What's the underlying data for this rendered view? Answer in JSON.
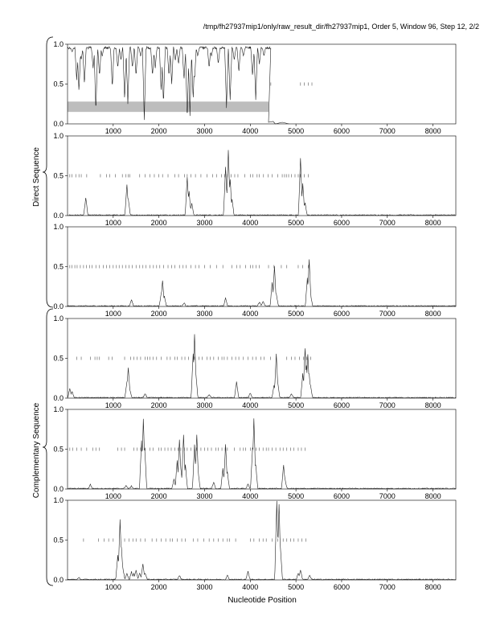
{
  "header": "/tmp/fh27937mip1/only/raw_result_dir/fh27937mip1, Order 5, Window 96, Step 12, 2/2",
  "xlabel": "Nucleotide Position",
  "groups": [
    "Direct Sequence",
    "Complementary Sequence"
  ],
  "chart_data": {
    "type": "line",
    "title": "",
    "xlabel": "Nucleotide Position",
    "xlim": [
      0,
      8500
    ],
    "ylim": [
      0,
      1
    ],
    "x_ticks": [
      1000,
      2000,
      3000,
      4000,
      5000,
      6000,
      7000,
      8000
    ],
    "y_ticks": [
      "0.0",
      "0.5",
      "1.0"
    ],
    "panels": [
      {
        "panel": 1,
        "group": "Direct Sequence",
        "data_end": 4450,
        "shaded_band": {
          "x": [
            0,
            4400
          ],
          "y": [
            0.15,
            0.28
          ]
        },
        "baseline": 0.97,
        "dips": [
          [
            100,
            0.9
          ],
          [
            200,
            0.55
          ],
          [
            250,
            0.4
          ],
          [
            300,
            0.8
          ],
          [
            370,
            0.5
          ],
          [
            560,
            0.7
          ],
          [
            620,
            0.15
          ],
          [
            700,
            0.6
          ],
          [
            760,
            0.85
          ],
          [
            980,
            0.45
          ],
          [
            1100,
            0.7
          ],
          [
            1170,
            0.8
          ],
          [
            1250,
            0.3
          ],
          [
            1320,
            0.25
          ],
          [
            1420,
            0.7
          ],
          [
            1500,
            0.6
          ],
          [
            1600,
            0.85
          ],
          [
            1680,
            0.05
          ],
          [
            1860,
            0.6
          ],
          [
            1920,
            0.7
          ],
          [
            2050,
            0.4
          ],
          [
            2100,
            0.25
          ],
          [
            2220,
            0.6
          ],
          [
            2280,
            0.5
          ],
          [
            2360,
            0.8
          ],
          [
            2430,
            0.75
          ],
          [
            2550,
            0.55
          ],
          [
            2620,
            0.05
          ],
          [
            2680,
            0.1
          ],
          [
            2750,
            0.3
          ],
          [
            2780,
            0.55
          ],
          [
            2850,
            0.85
          ],
          [
            3100,
            0.7
          ],
          [
            3150,
            0.85
          ],
          [
            3300,
            0.75
          ],
          [
            3480,
            0.2
          ],
          [
            3560,
            0.3
          ],
          [
            3650,
            0.8
          ],
          [
            3750,
            0.65
          ],
          [
            3850,
            0.85
          ],
          [
            4050,
            0.6
          ],
          [
            4120,
            0.3
          ],
          [
            4200,
            0.75
          ],
          [
            4300,
            0.85
          ]
        ],
        "tail": [
          [
            4400,
            0.02
          ],
          [
            4500,
            0.03
          ],
          [
            4550,
            0.0
          ],
          [
            4700,
            0.02
          ],
          [
            4850,
            0.0
          ]
        ],
        "ticks_half": [
          4450,
          5100,
          5180,
          5270,
          5350
        ]
      },
      {
        "panel": 2,
        "group": "Direct Sequence",
        "peaks": [
          [
            400,
            0.22
          ],
          [
            1300,
            0.38
          ],
          [
            1330,
            0.2
          ],
          [
            2620,
            0.48
          ],
          [
            2660,
            0.3
          ],
          [
            2720,
            0.15
          ],
          [
            3460,
            0.6
          ],
          [
            3520,
            0.82
          ],
          [
            3560,
            0.45
          ],
          [
            3600,
            0.2
          ],
          [
            5100,
            0.72
          ],
          [
            5150,
            0.4
          ],
          [
            5200,
            0.15
          ]
        ],
        "ticks_half": [
          50,
          100,
          180,
          250,
          300,
          420,
          720,
          850,
          920,
          1050,
          1200,
          1280,
          1330,
          1360,
          1580,
          1700,
          1800,
          1900,
          2000,
          2080,
          2200,
          2350,
          2430,
          2560,
          2620,
          2700,
          2800,
          2920,
          3050,
          3180,
          3260,
          3370,
          3440,
          3500,
          3580,
          3660,
          3730,
          3880,
          4000,
          4060,
          4150,
          4200,
          4290,
          4390,
          4480,
          4600,
          4700,
          4750,
          4790,
          4840,
          4900,
          4980,
          5050,
          5100,
          5180,
          5270
        ]
      },
      {
        "panel": 3,
        "group": "Direct Sequence",
        "peaks": [
          [
            1400,
            0.08
          ],
          [
            2050,
            0.15
          ],
          [
            2080,
            0.32
          ],
          [
            2120,
            0.12
          ],
          [
            2550,
            0.04
          ],
          [
            3460,
            0.1
          ],
          [
            4200,
            0.05
          ],
          [
            4280,
            0.06
          ],
          [
            4480,
            0.3
          ],
          [
            4530,
            0.5
          ],
          [
            4570,
            0.15
          ],
          [
            5250,
            0.35
          ],
          [
            5290,
            0.58
          ],
          [
            5320,
            0.15
          ]
        ],
        "ticks_half": [
          50,
          100,
          160,
          210,
          280,
          350,
          410,
          480,
          540,
          620,
          700,
          780,
          850,
          920,
          1000,
          1070,
          1130,
          1200,
          1280,
          1350,
          1420,
          1500,
          1580,
          1650,
          1720,
          1800,
          1880,
          1950,
          2020,
          2100,
          2200,
          2280,
          2350,
          2450,
          2530,
          2600,
          2700,
          2800,
          2880,
          3000,
          3120,
          3260,
          3400,
          3600,
          3700,
          3780,
          3900,
          4000,
          4060,
          4130,
          4200,
          4400,
          4520,
          4680,
          4800,
          5050,
          5150,
          5270
        ]
      },
      {
        "panel": 4,
        "group": "Complementary Sequence",
        "peaks": [
          [
            50,
            0.12
          ],
          [
            100,
            0.08
          ],
          [
            1300,
            0.2
          ],
          [
            1330,
            0.38
          ],
          [
            1360,
            0.12
          ],
          [
            1700,
            0.05
          ],
          [
            2750,
            0.55
          ],
          [
            2780,
            0.8
          ],
          [
            2810,
            0.3
          ],
          [
            3100,
            0.04
          ],
          [
            3700,
            0.2
          ],
          [
            4000,
            0.06
          ],
          [
            4520,
            0.15
          ],
          [
            4570,
            0.55
          ],
          [
            4600,
            0.2
          ],
          [
            4900,
            0.05
          ],
          [
            5150,
            0.3
          ],
          [
            5200,
            0.62
          ],
          [
            5230,
            0.4
          ],
          [
            5260,
            0.55
          ],
          [
            5290,
            0.3
          ],
          [
            5320,
            0.15
          ]
        ],
        "ticks_half": [
          200,
          300,
          500,
          600,
          650,
          700,
          900,
          980,
          1250,
          1380,
          1450,
          1520,
          1600,
          1700,
          1750,
          1800,
          1870,
          1950,
          2050,
          2180,
          2250,
          2350,
          2400,
          2500,
          2570,
          2650,
          2780,
          2880,
          2950,
          3050,
          3120,
          3200,
          3300,
          3380,
          3430,
          3500,
          3600,
          3680,
          3750,
          3850,
          3950,
          4050,
          4130,
          4230,
          4300,
          4440,
          4800,
          4900,
          4980,
          5080,
          5170,
          5240,
          5320
        ]
      },
      {
        "panel": 5,
        "group": "Complementary Sequence",
        "peaks": [
          [
            500,
            0.05
          ],
          [
            1280,
            0.04
          ],
          [
            1400,
            0.03
          ],
          [
            1620,
            0.6
          ],
          [
            1660,
            0.88
          ],
          [
            1690,
            0.5
          ],
          [
            2330,
            0.12
          ],
          [
            2400,
            0.35
          ],
          [
            2450,
            0.62
          ],
          [
            2480,
            0.25
          ],
          [
            2540,
            0.68
          ],
          [
            2580,
            0.3
          ],
          [
            2780,
            0.55
          ],
          [
            2830,
            0.68
          ],
          [
            2860,
            0.2
          ],
          [
            3200,
            0.08
          ],
          [
            3400,
            0.25
          ],
          [
            3460,
            0.55
          ],
          [
            3500,
            0.2
          ],
          [
            3950,
            0.06
          ],
          [
            4050,
            0.5
          ],
          [
            4080,
            0.88
          ],
          [
            4120,
            0.3
          ],
          [
            4730,
            0.3
          ],
          [
            4760,
            0.12
          ]
        ],
        "ticks_half": [
          50,
          110,
          200,
          300,
          420,
          550,
          620,
          700,
          1100,
          1180,
          1250,
          1450,
          1520,
          1600,
          1700,
          1800,
          1870,
          2000,
          2050,
          2130,
          2200,
          2270,
          2350,
          2420,
          2480,
          2560,
          2620,
          2700,
          2780,
          2830,
          2920,
          3000,
          3070,
          3150,
          3250,
          3300,
          3380,
          3450,
          3500,
          3650,
          3780,
          3850,
          3900,
          4000,
          4050,
          4130,
          4200,
          4280,
          4350,
          4400,
          4480,
          4560,
          4650,
          4720,
          4800,
          4880,
          4950,
          5050,
          5120,
          5200
        ]
      },
      {
        "panel": 6,
        "group": "Complementary Sequence",
        "peaks": [
          [
            250,
            0.02
          ],
          [
            1100,
            0.3
          ],
          [
            1150,
            0.75
          ],
          [
            1180,
            0.4
          ],
          [
            1210,
            0.15
          ],
          [
            1300,
            0.08
          ],
          [
            1400,
            0.1
          ],
          [
            1450,
            0.07
          ],
          [
            1500,
            0.12
          ],
          [
            1580,
            0.08
          ],
          [
            1650,
            0.2
          ],
          [
            1700,
            0.08
          ],
          [
            2450,
            0.05
          ],
          [
            3500,
            0.05
          ],
          [
            3950,
            0.1
          ],
          [
            4580,
            0.98
          ],
          [
            4630,
            0.95
          ],
          [
            4660,
            0.4
          ],
          [
            5050,
            0.08
          ],
          [
            5100,
            0.12
          ],
          [
            5300,
            0.05
          ]
        ],
        "ticks_half": [
          350,
          680,
          800,
          900,
          1000,
          1250,
          1350,
          1430,
          1500,
          1600,
          1700,
          1850,
          1950,
          2050,
          2150,
          2250,
          2300,
          2400,
          2500,
          2580,
          2750,
          2850,
          2980,
          3100,
          3200,
          3300,
          3400,
          3500,
          3550,
          3680,
          4000,
          4080,
          4200,
          4280,
          4350,
          4480,
          4600,
          4720,
          4800,
          4880,
          4950,
          5050,
          5130,
          5220
        ]
      }
    ]
  }
}
